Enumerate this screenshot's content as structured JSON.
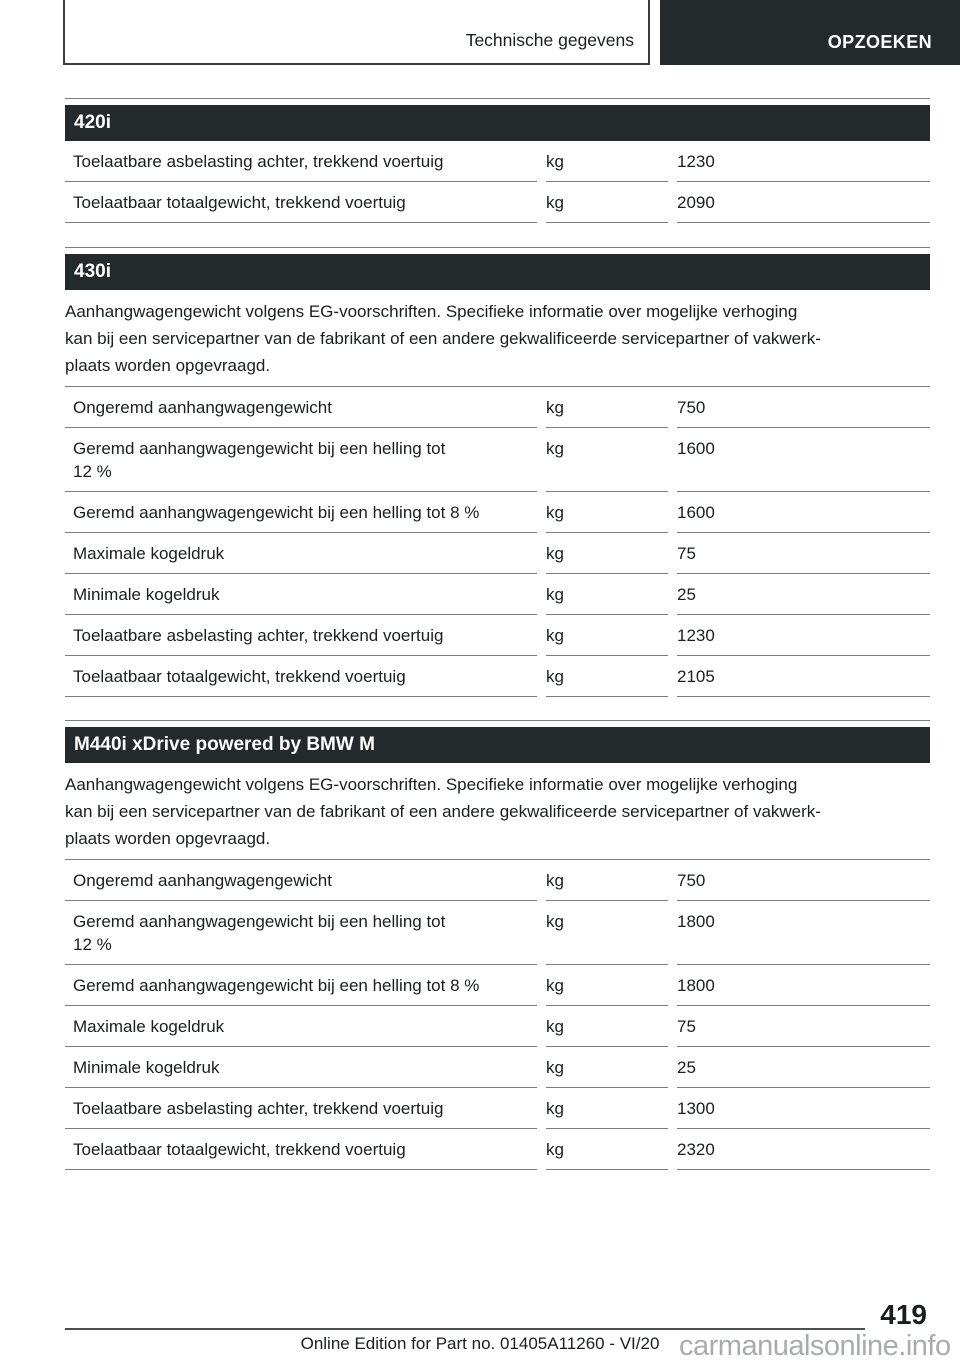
{
  "header": {
    "breadcrumb": "Technische gegevens",
    "search_label": "OPZOEKEN"
  },
  "colors": {
    "section_bar_bg": "#242a2b",
    "rule_gray": "#7b7d7e",
    "footer_rule": "#4c4e50",
    "watermark_gray": "#a9abad",
    "text": "#1b1d1e"
  },
  "sections": [
    {
      "title": "420i",
      "rows": [
        {
          "label": "Toelaatbare asbelasting achter, trekkend voertuig",
          "unit": "kg",
          "value": "1230"
        },
        {
          "label": "Toelaatbaar totaalgewicht, trekkend voertuig",
          "unit": "kg",
          "value": "2090"
        }
      ]
    },
    {
      "title": "430i",
      "intro": "Aanhangwagengewicht volgens EG-voorschriften. Specifieke informatie over mogelijke verhoging\nkan bij een servicepartner van de fabrikant of een andere gekwalificeerde servicepartner of vakwerk-\nplaats worden opgevraagd.",
      "rows": [
        {
          "label": "Ongeremd aanhangwagengewicht",
          "unit": "kg",
          "value": "750"
        },
        {
          "label": "Geremd aanhangwagengewicht bij een helling tot\n12 %",
          "unit": "kg",
          "value": "1600"
        },
        {
          "label": "Geremd aanhangwagengewicht bij een helling tot 8 %",
          "unit": "kg",
          "value": "1600"
        },
        {
          "label": "Maximale kogeldruk",
          "unit": "kg",
          "value": "75"
        },
        {
          "label": "Minimale kogeldruk",
          "unit": "kg",
          "value": "25"
        },
        {
          "label": "Toelaatbare asbelasting achter, trekkend voertuig",
          "unit": "kg",
          "value": "1230"
        },
        {
          "label": "Toelaatbaar totaalgewicht, trekkend voertuig",
          "unit": "kg",
          "value": "2105"
        }
      ]
    },
    {
      "title": "M440i xDrive powered by BMW M",
      "intro": "Aanhangwagengewicht volgens EG-voorschriften. Specifieke informatie over mogelijke verhoging\nkan bij een servicepartner van de fabrikant of een andere gekwalificeerde servicepartner of vakwerk-\nplaats worden opgevraagd.",
      "rows": [
        {
          "label": "Ongeremd aanhangwagengewicht",
          "unit": "kg",
          "value": "750"
        },
        {
          "label": "Geremd aanhangwagengewicht bij een helling tot\n12 %",
          "unit": "kg",
          "value": "1800"
        },
        {
          "label": "Geremd aanhangwagengewicht bij een helling tot 8 %",
          "unit": "kg",
          "value": "1800"
        },
        {
          "label": "Maximale kogeldruk",
          "unit": "kg",
          "value": "75"
        },
        {
          "label": "Minimale kogeldruk",
          "unit": "kg",
          "value": "25"
        },
        {
          "label": "Toelaatbare asbelasting achter, trekkend voertuig",
          "unit": "kg",
          "value": "1300"
        },
        {
          "label": "Toelaatbaar totaalgewicht, trekkend voertuig",
          "unit": "kg",
          "value": "2320"
        }
      ]
    }
  ],
  "footer": {
    "page_number": "419",
    "edition": "Online Edition for Part no. 01405A11260 - VI/20",
    "watermark": "carmanualsonline.info"
  }
}
